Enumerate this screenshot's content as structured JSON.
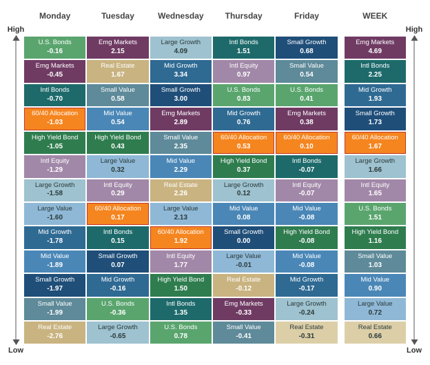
{
  "layout": {
    "axis_high": "High",
    "axis_low": "Low",
    "header_fontsize": 12,
    "cell_label_fontsize": 9.5,
    "cell_value_fontsize": 10,
    "background_color": "#ffffff"
  },
  "palette": {
    "orange": "#f5851f",
    "teal_dk": "#1e6a6b",
    "green_dk": "#2f7d4f",
    "green_md": "#5aa56e",
    "slate": "#5e8a99",
    "slate_lt": "#9ec2cf",
    "blue_dk": "#1f4e79",
    "blue_mdk": "#2f6a93",
    "blue_md": "#4a87b7",
    "blue_lt": "#8fb8d6",
    "purple": "#6f3b63",
    "purple_lt": "#a288a8",
    "tan": "#c9b380",
    "sand": "#dccfa8",
    "highlight_border": "#c0392b"
  },
  "columns": [
    {
      "key": "mon",
      "label": "Monday"
    },
    {
      "key": "tue",
      "label": "Tuesday"
    },
    {
      "key": "wed",
      "label": "Wednesday"
    },
    {
      "key": "thu",
      "label": "Thursday"
    },
    {
      "key": "fri",
      "label": "Friday"
    },
    {
      "key": "week",
      "label": "WEEK"
    }
  ],
  "table": {
    "mon": [
      {
        "name": "U.S. Bonds",
        "value": "-0.16",
        "c": "green_md"
      },
      {
        "name": "Emg Markets",
        "value": "-0.45",
        "c": "purple"
      },
      {
        "name": "Intl Bonds",
        "value": "-0.70",
        "c": "teal_dk"
      },
      {
        "name": "60/40 Allocation",
        "value": "-1.03",
        "c": "orange",
        "hl": true
      },
      {
        "name": "High Yield Bond",
        "value": "-1.05",
        "c": "green_dk"
      },
      {
        "name": "Intl Equity",
        "value": "-1.29",
        "c": "purple_lt"
      },
      {
        "name": "Large Growth",
        "value": "-1.58",
        "c": "slate_lt",
        "dk": true
      },
      {
        "name": "Large Value",
        "value": "-1.60",
        "c": "blue_lt",
        "dk": true
      },
      {
        "name": "Mid Growth",
        "value": "-1.78",
        "c": "blue_mdk"
      },
      {
        "name": "Mid Value",
        "value": "-1.89",
        "c": "blue_md"
      },
      {
        "name": "Small Growth",
        "value": "-1.97",
        "c": "blue_dk"
      },
      {
        "name": "Small Value",
        "value": "-1.99",
        "c": "slate"
      },
      {
        "name": "Real Estate",
        "value": "-2.76",
        "c": "tan"
      }
    ],
    "tue": [
      {
        "name": "Emg Markets",
        "value": "2.15",
        "c": "purple"
      },
      {
        "name": "Real Estate",
        "value": "1.67",
        "c": "tan"
      },
      {
        "name": "Small Value",
        "value": "0.58",
        "c": "slate"
      },
      {
        "name": "Mid Value",
        "value": "0.54",
        "c": "blue_md"
      },
      {
        "name": "High Yield Bond",
        "value": "0.43",
        "c": "green_dk"
      },
      {
        "name": "Large Value",
        "value": "0.32",
        "c": "blue_lt",
        "dk": true
      },
      {
        "name": "Intl Equity",
        "value": "0.29",
        "c": "purple_lt"
      },
      {
        "name": "60/40 Allocation",
        "value": "0.17",
        "c": "orange",
        "hl": true
      },
      {
        "name": "Intl Bonds",
        "value": "0.15",
        "c": "teal_dk"
      },
      {
        "name": "Small Growth",
        "value": "0.07",
        "c": "blue_dk"
      },
      {
        "name": "Mid Growth",
        "value": "-0.16",
        "c": "blue_mdk"
      },
      {
        "name": "U.S. Bonds",
        "value": "-0.36",
        "c": "green_md"
      },
      {
        "name": "Large Growth",
        "value": "-0.65",
        "c": "slate_lt",
        "dk": true
      }
    ],
    "wed": [
      {
        "name": "Large Growth",
        "value": "4.09",
        "c": "slate_lt",
        "dk": true
      },
      {
        "name": "Mid Growth",
        "value": "3.34",
        "c": "blue_mdk"
      },
      {
        "name": "Small Growth",
        "value": "3.00",
        "c": "blue_dk"
      },
      {
        "name": "Emg Markets",
        "value": "2.89",
        "c": "purple"
      },
      {
        "name": "Small Value",
        "value": "2.35",
        "c": "slate"
      },
      {
        "name": "Mid Value",
        "value": "2.29",
        "c": "blue_md"
      },
      {
        "name": "Real Estate",
        "value": "2.26",
        "c": "tan"
      },
      {
        "name": "Large Value",
        "value": "2.13",
        "c": "blue_lt",
        "dk": true
      },
      {
        "name": "60/40 Allocation",
        "value": "1.92",
        "c": "orange",
        "hl": true
      },
      {
        "name": "Intl Equity",
        "value": "1.77",
        "c": "purple_lt"
      },
      {
        "name": "High Yield Bond",
        "value": "1.50",
        "c": "green_dk"
      },
      {
        "name": "Intl Bonds",
        "value": "1.35",
        "c": "teal_dk"
      },
      {
        "name": "U.S. Bonds",
        "value": "0.78",
        "c": "green_md"
      }
    ],
    "thu": [
      {
        "name": "Intl Bonds",
        "value": "1.51",
        "c": "teal_dk"
      },
      {
        "name": "Intl Equity",
        "value": "0.97",
        "c": "purple_lt"
      },
      {
        "name": "U.S. Bonds",
        "value": "0.83",
        "c": "green_md"
      },
      {
        "name": "Mid Growth",
        "value": "0.76",
        "c": "blue_mdk"
      },
      {
        "name": "60/40 Allocation",
        "value": "0.53",
        "c": "orange",
        "hl": true
      },
      {
        "name": "High Yield Bond",
        "value": "0.37",
        "c": "green_dk"
      },
      {
        "name": "Large Growth",
        "value": "0.12",
        "c": "slate_lt",
        "dk": true
      },
      {
        "name": "Mid Value",
        "value": "0.08",
        "c": "blue_md"
      },
      {
        "name": "Small Growth",
        "value": "0.00",
        "c": "blue_dk"
      },
      {
        "name": "Large Value",
        "value": "-0.01",
        "c": "blue_lt",
        "dk": true
      },
      {
        "name": "Real Estate",
        "value": "-0.12",
        "c": "tan"
      },
      {
        "name": "Emg Markets",
        "value": "-0.33",
        "c": "purple"
      },
      {
        "name": "Small Value",
        "value": "-0.41",
        "c": "slate"
      }
    ],
    "fri": [
      {
        "name": "Small Growth",
        "value": "0.68",
        "c": "blue_dk"
      },
      {
        "name": "Small Value",
        "value": "0.54",
        "c": "slate"
      },
      {
        "name": "U.S. Bonds",
        "value": "0.41",
        "c": "green_md"
      },
      {
        "name": "Emg Markets",
        "value": "0.38",
        "c": "purple"
      },
      {
        "name": "60/40 Allocation",
        "value": "0.10",
        "c": "orange",
        "hl": true
      },
      {
        "name": "Intl Bonds",
        "value": "-0.07",
        "c": "teal_dk"
      },
      {
        "name": "Intl Equity",
        "value": "-0.07",
        "c": "purple_lt"
      },
      {
        "name": "Mid Value",
        "value": "-0.08",
        "c": "blue_md"
      },
      {
        "name": "High Yield Bond",
        "value": "-0.08",
        "c": "green_dk"
      },
      {
        "name": "Mid Value",
        "value": "-0.08",
        "c": "blue_md"
      },
      {
        "name": "Mid Growth",
        "value": "-0.17",
        "c": "blue_mdk"
      },
      {
        "name": "Large Growth",
        "value": "-0.24",
        "c": "slate_lt",
        "dk": true
      },
      {
        "name": "Real Estate",
        "value": "-0.31",
        "c": "sand",
        "dk": true
      }
    ],
    "week": [
      {
        "name": "Emg Markets",
        "value": "4.69",
        "c": "purple"
      },
      {
        "name": "Intl Bonds",
        "value": "2.25",
        "c": "teal_dk"
      },
      {
        "name": "Mid Growth",
        "value": "1.93",
        "c": "blue_mdk"
      },
      {
        "name": "Small Growth",
        "value": "1.73",
        "c": "blue_dk"
      },
      {
        "name": "60/40 Allocation",
        "value": "1.67",
        "c": "orange",
        "hl": true
      },
      {
        "name": "Large Growth",
        "value": "1.66",
        "c": "slate_lt",
        "dk": true
      },
      {
        "name": "Intl Equity",
        "value": "1.65",
        "c": "purple_lt"
      },
      {
        "name": "U.S. Bonds",
        "value": "1.51",
        "c": "green_md"
      },
      {
        "name": "High Yield Bond",
        "value": "1.16",
        "c": "green_dk"
      },
      {
        "name": "Small Value",
        "value": "1.03",
        "c": "slate"
      },
      {
        "name": "Mid Value",
        "value": "0.90",
        "c": "blue_md"
      },
      {
        "name": "Large Value",
        "value": "0.72",
        "c": "blue_lt",
        "dk": true
      },
      {
        "name": "Real Estate",
        "value": "0.66",
        "c": "sand",
        "dk": true
      }
    ]
  }
}
